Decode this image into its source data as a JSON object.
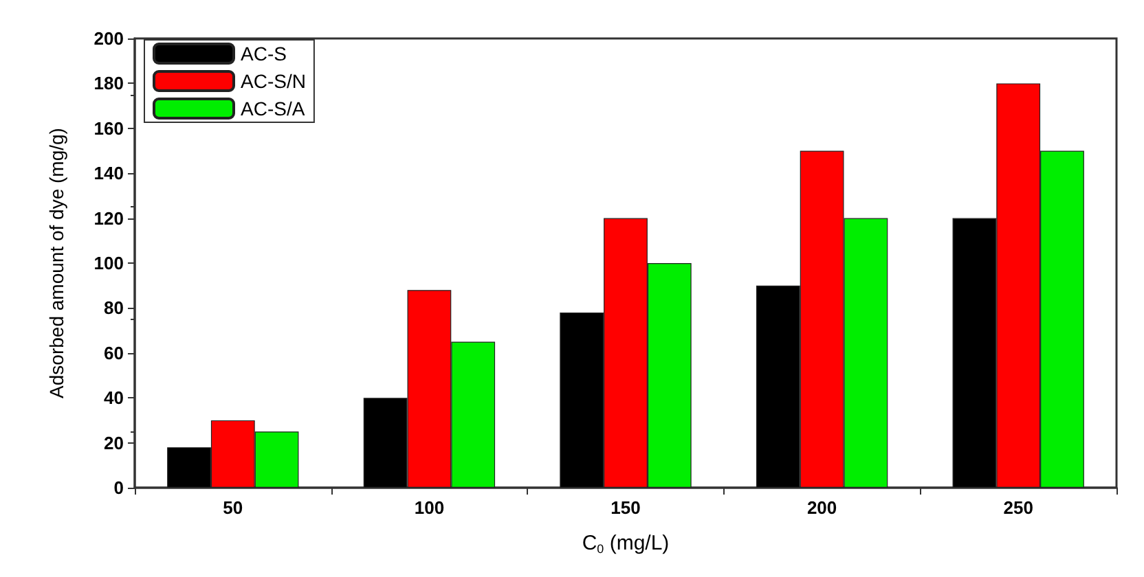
{
  "chart_data": {
    "type": "bar",
    "xlabel": "C$_{0}$ (mg/L)",
    "ylabel": "Adsorbed amount of dye (mg/g)",
    "categories": [
      "50",
      "100",
      "150",
      "200",
      "250"
    ],
    "series": [
      {
        "name": "AC-S",
        "color": "#000000",
        "values": [
          18,
          40,
          78,
          90,
          120
        ]
      },
      {
        "name": "AC-S/N",
        "color": "#ff0000",
        "values": [
          30,
          88,
          120,
          150,
          180
        ]
      },
      {
        "name": "AC-S/A",
        "color": "#00ee00",
        "values": [
          25,
          65,
          100,
          120,
          150
        ]
      }
    ],
    "ylim": [
      0,
      200
    ],
    "yticks": [
      0,
      20,
      40,
      60,
      80,
      100,
      120,
      140,
      160,
      180,
      200
    ],
    "grid": false,
    "legend": "top left"
  }
}
